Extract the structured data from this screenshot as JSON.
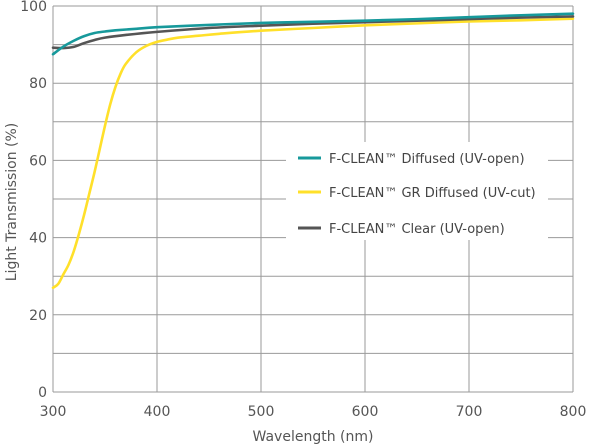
{
  "chart_data": {
    "type": "line",
    "xlabel": "Wavelength (nm)",
    "ylabel": "Light Transmission (%)",
    "xlim": [
      300,
      800
    ],
    "ylim": [
      0,
      100
    ],
    "xticks": [
      300,
      400,
      500,
      600,
      700,
      800
    ],
    "yticks": [
      0,
      20,
      40,
      60,
      80,
      100
    ],
    "grid": true,
    "legend_position": "right-center",
    "series": [
      {
        "name": "F-CLEAN™ Diffused (UV-open)",
        "color": "#17999b",
        "x": [
          300,
          310,
          320,
          330,
          340,
          350,
          360,
          380,
          400,
          450,
          500,
          550,
          600,
          650,
          700,
          750,
          800
        ],
        "y": [
          87.5,
          89.5,
          91,
          92.2,
          93,
          93.4,
          93.7,
          94.1,
          94.5,
          95.1,
          95.6,
          95.9,
          96.2,
          96.6,
          97.1,
          97.6,
          98
        ]
      },
      {
        "name": "F-CLEAN™ GR Diffused (UV-cut)",
        "color": "#ffe02a",
        "x": [
          300,
          305,
          310,
          315,
          320,
          325,
          330,
          335,
          340,
          345,
          350,
          355,
          360,
          365,
          370,
          380,
          390,
          400,
          410,
          420,
          440,
          460,
          500,
          550,
          600,
          650,
          700,
          750,
          800
        ],
        "y": [
          27,
          28,
          30.5,
          33,
          36.5,
          41,
          46,
          51.5,
          57,
          63,
          69,
          74.5,
          79,
          82.5,
          85,
          88,
          89.7,
          90.7,
          91.3,
          91.8,
          92.3,
          92.8,
          93.6,
          94.3,
          95,
          95.5,
          96,
          96.3,
          96.7
        ]
      },
      {
        "name": "F-CLEAN™ Clear (UV-open)",
        "color": "#555555",
        "x": [
          300,
          310,
          320,
          330,
          340,
          350,
          370,
          400,
          450,
          500,
          550,
          600,
          650,
          700,
          750,
          800
        ],
        "y": [
          89.2,
          89.1,
          89.4,
          90.4,
          91.2,
          91.8,
          92.5,
          93.3,
          94.3,
          94.9,
          95.4,
          95.8,
          96.2,
          96.6,
          97,
          97.3
        ]
      }
    ]
  }
}
